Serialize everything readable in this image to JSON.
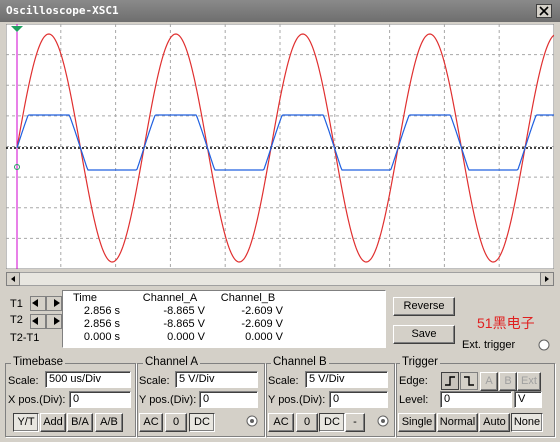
{
  "window_title": "Oscilloscope-XSC1",
  "readout": {
    "columns": [
      "Time",
      "Channel_A",
      "Channel_B"
    ],
    "rows": [
      {
        "label": "T1",
        "values": [
          "2.856 s",
          "-8.865 V",
          "-2.609 V"
        ]
      },
      {
        "label": "T2",
        "values": [
          "2.856 s",
          "-8.865 V",
          "-2.609 V"
        ]
      },
      {
        "label": "T2-T1",
        "values": [
          "0.000 s",
          "0.000 V",
          "0.000 V"
        ]
      }
    ]
  },
  "buttons": {
    "reverse": "Reverse",
    "save": "Save"
  },
  "watermark": "51黑电子",
  "ext_trigger": "Ext. trigger",
  "timebase": {
    "title": "Timebase",
    "scale_label": "Scale:",
    "scale": "500 us/Div",
    "xpos_label": "X pos.(Div):",
    "xpos": "0",
    "modes": [
      "Y/T",
      "Add",
      "B/A",
      "A/B"
    ]
  },
  "channel_a": {
    "title": "Channel A",
    "scale_label": "Scale:",
    "scale": "5  V/Div",
    "ypos_label": "Y pos.(Div):",
    "ypos": "0",
    "coupling": [
      "AC",
      "0",
      "DC"
    ]
  },
  "channel_b": {
    "title": "Channel B",
    "scale_label": "Scale:",
    "scale": "5  V/Div",
    "ypos_label": "Y pos.(Div):",
    "ypos": "0",
    "coupling": [
      "AC",
      "0",
      "DC",
      "-"
    ]
  },
  "trigger": {
    "title": "Trigger",
    "edge_label": "Edge:",
    "sources": [
      "A",
      "B",
      "Ext"
    ],
    "level_label": "Level:",
    "level": "0",
    "level_unit": "V",
    "modes": [
      "Single",
      "Normal",
      "Auto",
      "None"
    ]
  }
}
